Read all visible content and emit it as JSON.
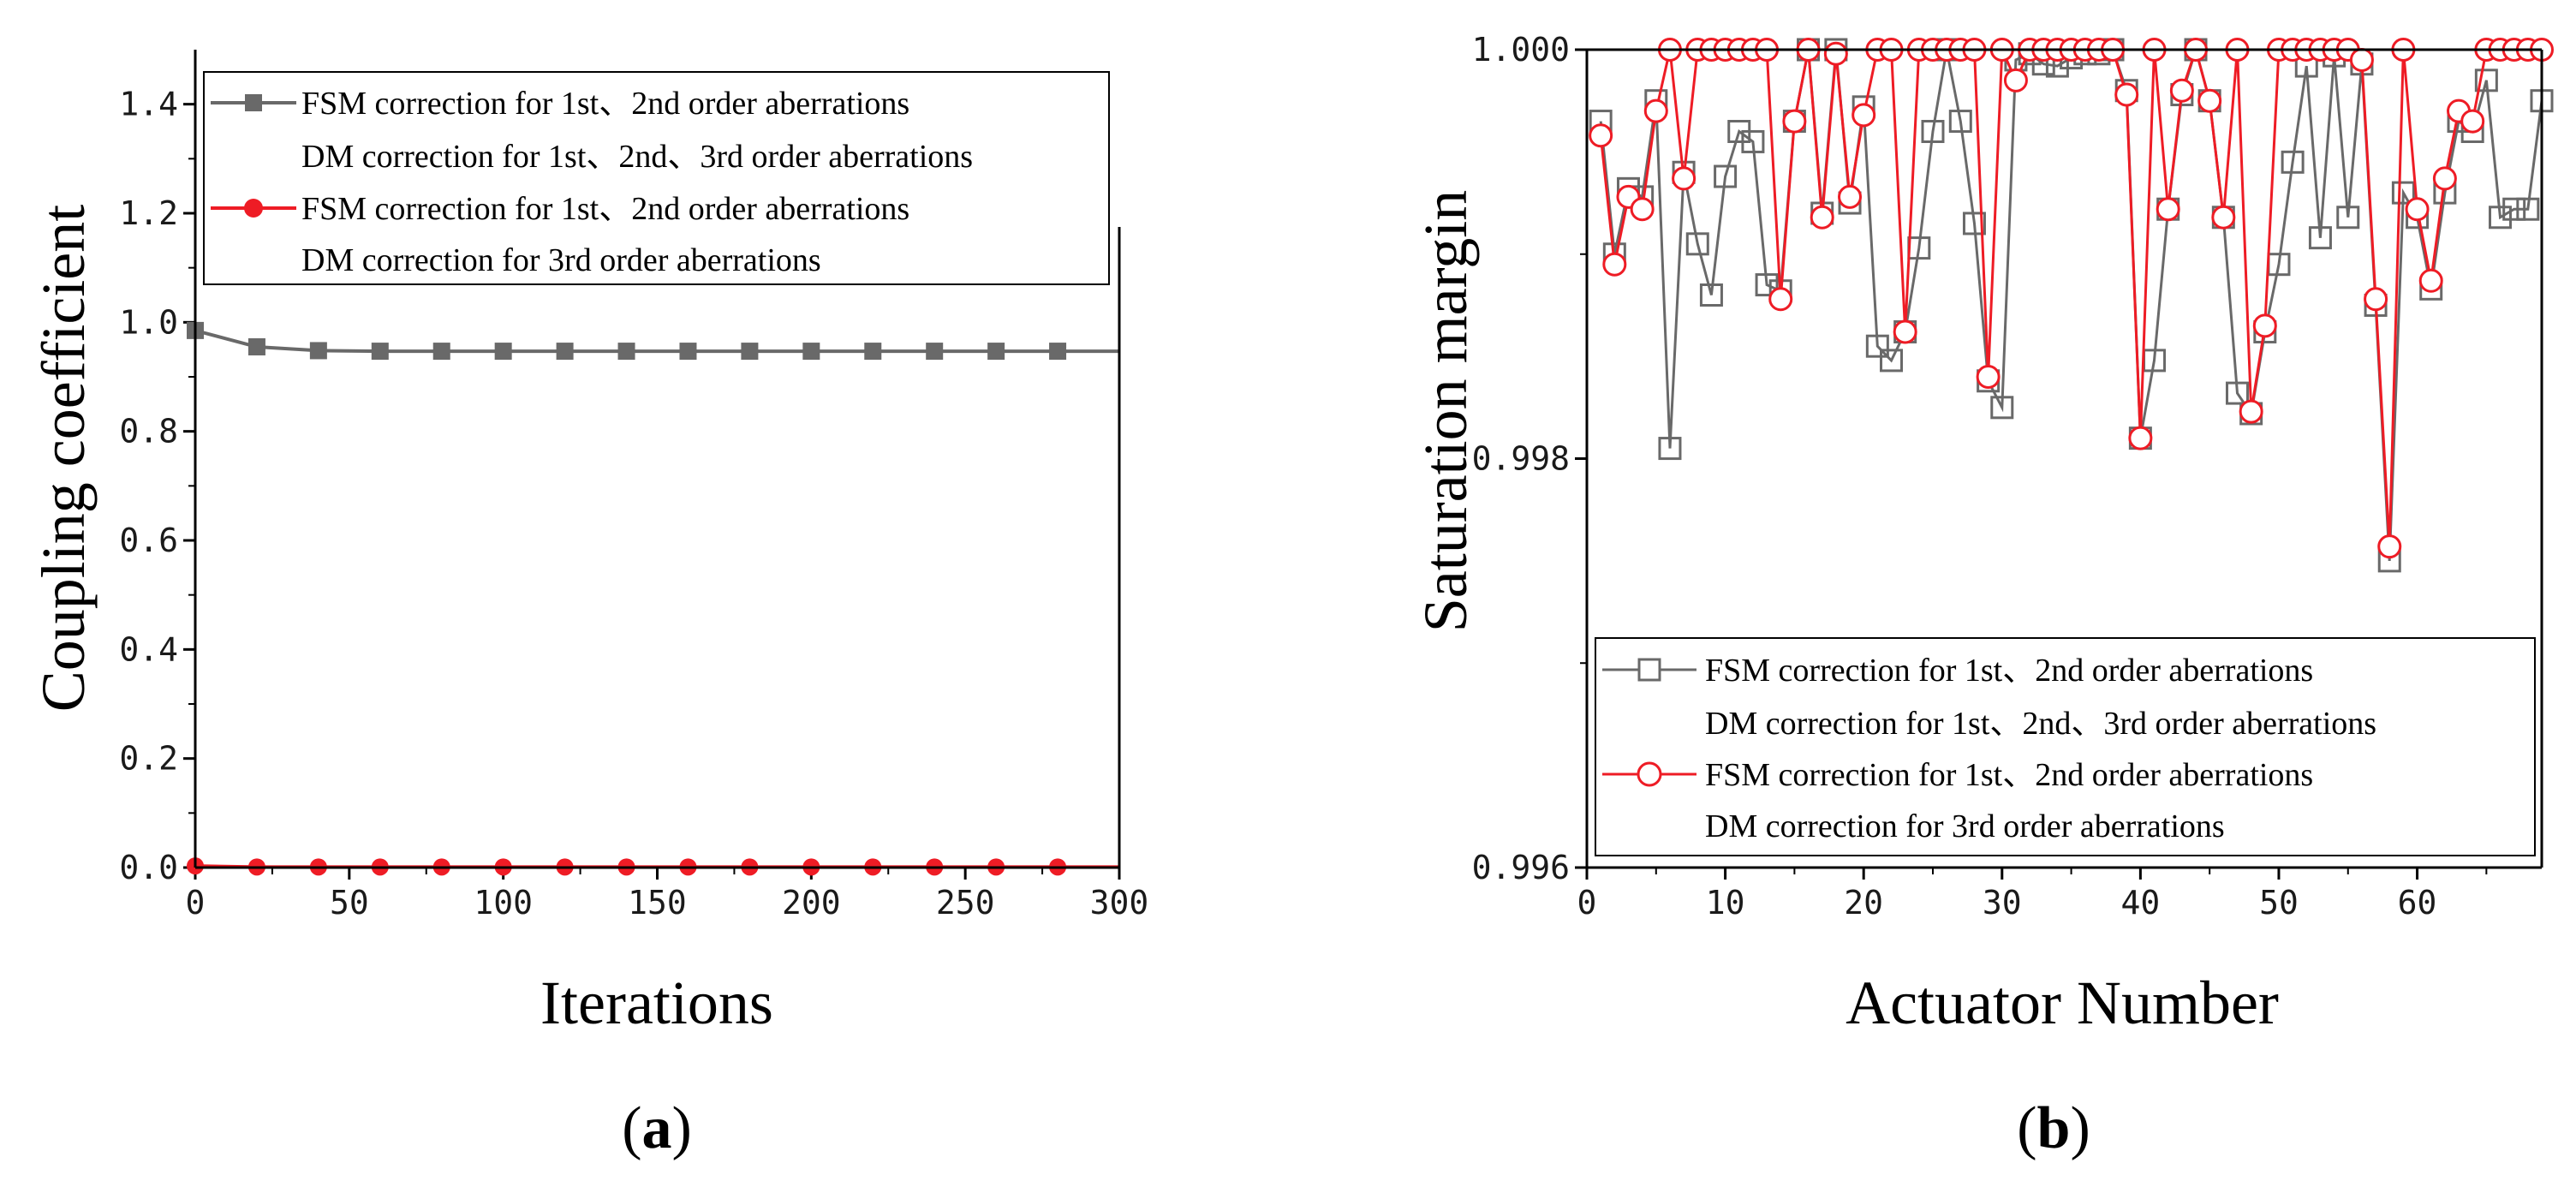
{
  "chart_data": [
    {
      "type": "line",
      "panel_label": "(a)",
      "panel_letter": "a",
      "xlabel": "Iterations",
      "ylabel": "Coupling coefficient",
      "xlim": [
        0,
        300
      ],
      "ylim": [
        0,
        1.5
      ],
      "xticks": [
        "0",
        "50",
        "100",
        "150",
        "200",
        "250",
        "300"
      ],
      "yticks": [
        "0.0",
        "0.2",
        "0.4",
        "0.6",
        "0.8",
        "1.0",
        "1.2",
        "1.4"
      ],
      "legend_position": "top",
      "series": [
        {
          "name": "FSM correction for 1st、2nd order aberrations",
          "name_line2": "DM correction for 1st、2nd、3rd order aberrations",
          "color": "#696969",
          "marker": "square",
          "x": [
            0,
            20,
            40,
            60,
            80,
            100,
            120,
            140,
            160,
            180,
            200,
            220,
            240,
            260,
            280,
            300
          ],
          "y": [
            0.985,
            0.955,
            0.948,
            0.947,
            0.947,
            0.947,
            0.947,
            0.947,
            0.947,
            0.947,
            0.947,
            0.947,
            0.947,
            0.947,
            0.947,
            0.947
          ],
          "marker_x": [
            0,
            20,
            40,
            60,
            80,
            100,
            120,
            140,
            160,
            180,
            200,
            220,
            240,
            260,
            280
          ]
        },
        {
          "name": "FSM correction for 1st、2nd order aberrations",
          "name_line2": "DM correction for 3rd order aberrations",
          "color": "#ee1c25",
          "marker": "circle",
          "x": [
            0,
            20,
            40,
            60,
            80,
            100,
            120,
            140,
            160,
            180,
            200,
            220,
            240,
            260,
            280,
            300
          ],
          "y": [
            0.003,
            0.001,
            0.001,
            0.001,
            0.001,
            0.001,
            0.001,
            0.001,
            0.001,
            0.001,
            0.001,
            0.001,
            0.001,
            0.001,
            0.001,
            0.001
          ],
          "marker_x": [
            0,
            20,
            40,
            60,
            80,
            100,
            120,
            140,
            160,
            180,
            200,
            220,
            240,
            260,
            280
          ]
        }
      ]
    },
    {
      "type": "line",
      "panel_label": "(b)",
      "panel_letter": "b",
      "xlabel": "Actuator Number",
      "ylabel": "Saturation margin",
      "xlim": [
        0,
        69
      ],
      "ylim": [
        0.996,
        1.0
      ],
      "xticks": [
        "0",
        "10",
        "20",
        "30",
        "40",
        "50",
        "60"
      ],
      "yticks": [
        "0.996",
        "0.998",
        "1.000"
      ],
      "legend_position": "bottom",
      "series": [
        {
          "name": "FSM correction for 1st、2nd order aberrations",
          "name_line2": "DM correction for 1st、2nd、3rd order aberrations",
          "color": "#696969",
          "marker": "open-square",
          "x": [
            1,
            2,
            3,
            4,
            5,
            6,
            7,
            8,
            9,
            10,
            11,
            12,
            13,
            14,
            15,
            16,
            17,
            18,
            19,
            20,
            21,
            22,
            23,
            24,
            25,
            26,
            27,
            28,
            29,
            30,
            31,
            32,
            33,
            34,
            35,
            36,
            37,
            38,
            39,
            40,
            41,
            42,
            43,
            44,
            45,
            46,
            47,
            48,
            49,
            50,
            51,
            52,
            53,
            54,
            55,
            56,
            57,
            58,
            59,
            60,
            61,
            62,
            63,
            64,
            65,
            66,
            67,
            68,
            69
          ],
          "y": [
            0.99965,
            0.999,
            0.99932,
            0.99928,
            0.99975,
            0.99805,
            0.9994,
            0.99905,
            0.9988,
            0.99938,
            0.9996,
            0.99955,
            0.99885,
            0.99882,
            0.99965,
            1.0,
            0.9992,
            1.0,
            0.99925,
            0.99972,
            0.99855,
            0.99848,
            0.99862,
            0.99903,
            0.9996,
            1.0,
            0.99965,
            0.99915,
            0.99838,
            0.99825,
            0.99995,
            0.99998,
            0.99993,
            0.99992,
            0.99996,
            0.99998,
            0.99998,
            1.0,
            0.9998,
            0.9981,
            0.99848,
            0.99922,
            0.99978,
            1.0,
            0.99975,
            0.99918,
            0.99832,
            0.99822,
            0.99862,
            0.99895,
            0.99945,
            0.99992,
            0.99908,
            0.99997,
            0.99918,
            0.99993,
            0.99875,
            0.9975,
            0.9993,
            0.99918,
            0.99883,
            0.9993,
            0.99965,
            0.9996,
            0.99985,
            0.99918,
            0.99922,
            0.99922,
            0.99975
          ]
        },
        {
          "name": "FSM correction for 1st、2nd order aberrations",
          "name_line2": "DM correction for 3rd order aberrations",
          "color": "#ee1c25",
          "marker": "open-circle",
          "x": [
            1,
            2,
            3,
            4,
            5,
            6,
            7,
            8,
            9,
            10,
            11,
            12,
            13,
            14,
            15,
            16,
            17,
            18,
            19,
            20,
            21,
            22,
            23,
            24,
            25,
            26,
            27,
            28,
            29,
            30,
            31,
            32,
            33,
            34,
            35,
            36,
            37,
            38,
            39,
            40,
            41,
            42,
            43,
            44,
            45,
            46,
            47,
            48,
            49,
            50,
            51,
            52,
            53,
            54,
            55,
            56,
            57,
            58,
            59,
            60,
            61,
            62,
            63,
            64,
            65,
            66,
            67,
            68,
            69
          ],
          "y": [
            0.99958,
            0.99895,
            0.99928,
            0.99922,
            0.9997,
            1.0,
            0.99937,
            1.0,
            1.0,
            1.0,
            1.0,
            1.0,
            1.0,
            0.99878,
            0.99965,
            1.0,
            0.99918,
            0.99998,
            0.99928,
            0.99968,
            1.0,
            1.0,
            0.99862,
            1.0,
            1.0,
            1.0,
            1.0,
            1.0,
            0.9984,
            1.0,
            0.99985,
            1.0,
            1.0,
            1.0,
            1.0,
            1.0,
            1.0,
            1.0,
            0.99978,
            0.9981,
            1.0,
            0.99922,
            0.9998,
            1.0,
            0.99975,
            0.99918,
            1.0,
            0.99823,
            0.99865,
            1.0,
            1.0,
            1.0,
            1.0,
            1.0,
            1.0,
            0.99995,
            0.99878,
            0.99757,
            1.0,
            0.99922,
            0.99887,
            0.99937,
            0.9997,
            0.99965,
            1.0,
            1.0,
            1.0,
            1.0,
            1.0
          ]
        }
      ]
    }
  ]
}
